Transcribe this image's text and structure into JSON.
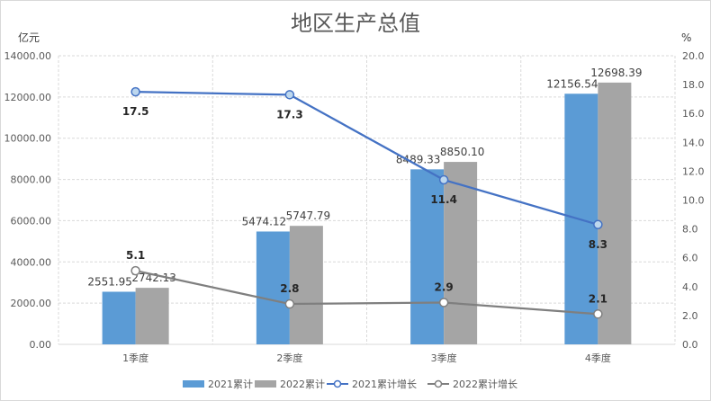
{
  "chart_data": {
    "type": "bar",
    "title": "地区生产总值",
    "y_unit_left": "亿元",
    "y_unit_right": "%",
    "categories": [
      "1季度",
      "2季度",
      "3季度",
      "4季度"
    ],
    "left_axis": {
      "ylim": [
        0,
        14000
      ],
      "ticks": [
        "0.00",
        "2000.00",
        "4000.00",
        "6000.00",
        "8000.00",
        "10000.00",
        "12000.00",
        "14000.00"
      ]
    },
    "right_axis": {
      "ylim": [
        0,
        20
      ],
      "ticks": [
        "0.0",
        "2.0",
        "4.0",
        "6.0",
        "8.0",
        "10.0",
        "12.0",
        "14.0",
        "16.0",
        "18.0",
        "20.0"
      ]
    },
    "bar_series": [
      {
        "name": "2021累计",
        "color": "#5b9bd5",
        "values": [
          2551.95,
          5474.12,
          8489.33,
          12156.54
        ],
        "labels": [
          "2551.95",
          "5474.12",
          "8489.33",
          "12156.54"
        ]
      },
      {
        "name": "2022累计",
        "color": "#a5a5a5",
        "values": [
          2742.13,
          5747.79,
          8850.1,
          12698.39
        ],
        "labels": [
          "2742.13",
          "5747.79",
          "8850.10",
          "12698.39"
        ]
      }
    ],
    "line_series": [
      {
        "name": "2021累计增长",
        "color": "#4472c4",
        "values": [
          17.5,
          17.3,
          11.4,
          8.3
        ],
        "labels": [
          "17.5",
          "17.3",
          "11.4",
          "8.3"
        ]
      },
      {
        "name": "2022累计增长",
        "color": "#7f7f7f",
        "values": [
          5.1,
          2.8,
          2.9,
          2.1
        ],
        "labels": [
          "5.1",
          "2.8",
          "2.9",
          "2.1"
        ]
      }
    ],
    "grid": true,
    "legend_position": "bottom"
  }
}
